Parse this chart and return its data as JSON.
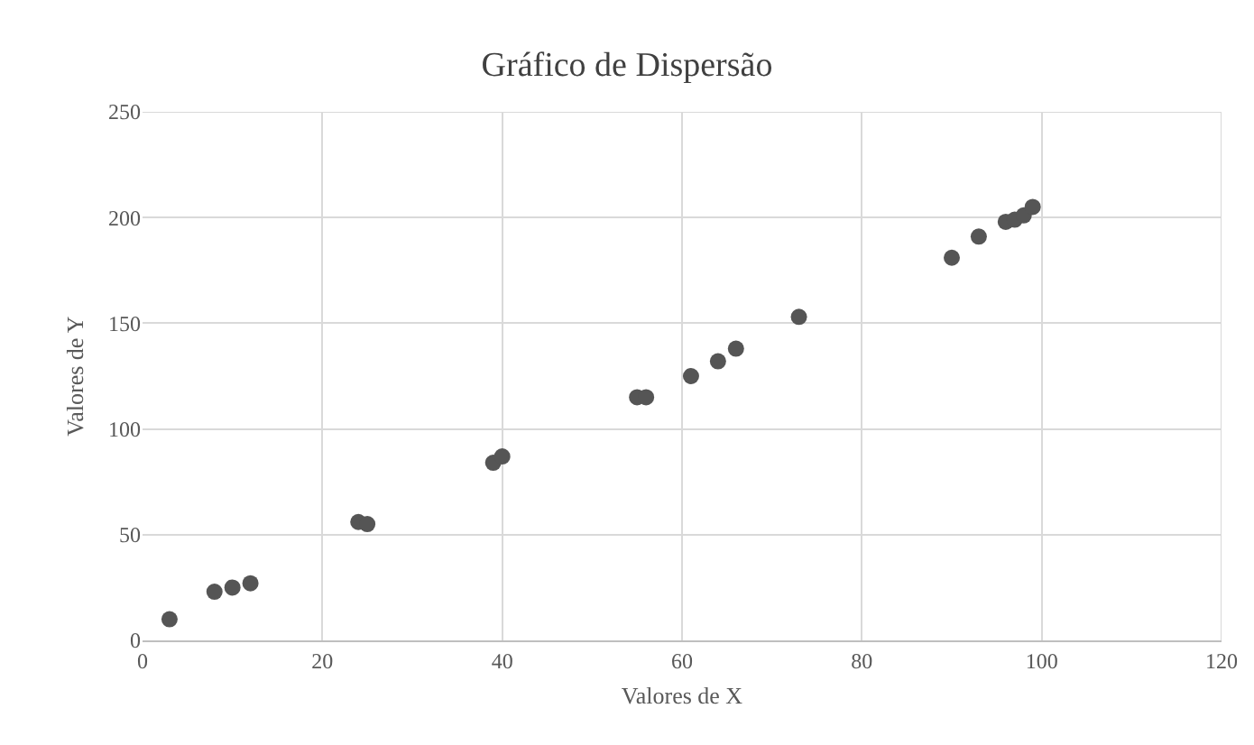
{
  "chart_data": {
    "type": "scatter",
    "title": "Gráfico de Dispersão",
    "xlabel": "Valores de X",
    "ylabel": "Valores de Y",
    "x": [
      3,
      8,
      10,
      12,
      24,
      25,
      39,
      40,
      55,
      56,
      61,
      64,
      66,
      73,
      90,
      93,
      96,
      97,
      98,
      99
    ],
    "series": [
      {
        "color": "#555555",
        "values": [
          10,
          23,
          25,
          27,
          56,
          55,
          84,
          87,
          115,
          115,
          125,
          132,
          138,
          153,
          181,
          191,
          198,
          199,
          201,
          205
        ]
      }
    ],
    "xlim": [
      0,
      120
    ],
    "xticks": [
      0,
      20,
      40,
      60,
      80,
      100,
      120
    ],
    "ylim": [
      0,
      250
    ],
    "yticks": [
      0,
      50,
      100,
      150,
      200,
      250
    ],
    "grid": true,
    "marker": "circle"
  }
}
